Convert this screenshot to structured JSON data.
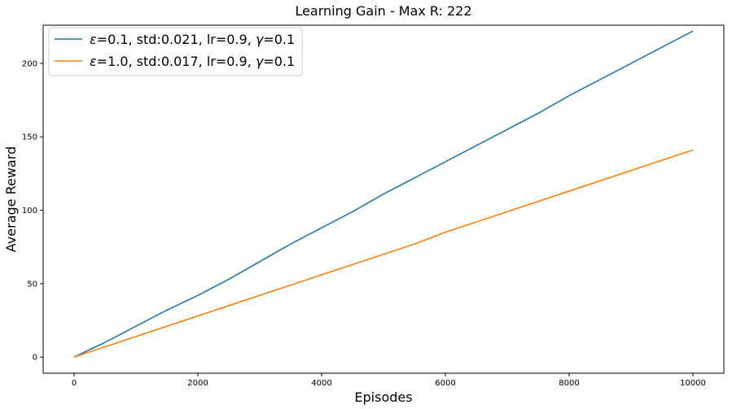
{
  "chart_data": {
    "type": "line",
    "title": "Learning Gain - Max R: 222",
    "xlabel": "Episodes",
    "ylabel": "Average Reward",
    "xlim": [
      -500,
      10500
    ],
    "ylim": [
      -11,
      226
    ],
    "xticks": [
      0,
      2000,
      4000,
      6000,
      8000,
      10000
    ],
    "yticks": [
      0,
      50,
      100,
      150,
      200
    ],
    "grid": false,
    "legend_position": "top-left",
    "series": [
      {
        "name": "ε=0.1, std:0.021, lr=0.9, γ=0.1",
        "legend_prefix": "ε",
        "legend_mid": "=0.1, std:0.021, lr=0.9, ",
        "legend_gamma": "γ",
        "legend_suffix": "=0.1",
        "color": "#1f77b4",
        "x": [
          0,
          500,
          1000,
          1500,
          2000,
          2500,
          3000,
          3500,
          4000,
          4500,
          5000,
          5500,
          6000,
          6500,
          7000,
          7500,
          8000,
          8500,
          9000,
          9500,
          10000
        ],
        "values": [
          0,
          10,
          21,
          32,
          42,
          53,
          65,
          77,
          88,
          99,
          111,
          122,
          133,
          144,
          155,
          166,
          178,
          189,
          200,
          211,
          222
        ]
      },
      {
        "name": "ε=1.0, std:0.017, lr=0.9, γ=0.1",
        "legend_prefix": "ε",
        "legend_mid": "=1.0, std:0.017, lr=0.9, ",
        "legend_gamma": "γ",
        "legend_suffix": "=0.1",
        "color": "#ff7f0e",
        "x": [
          0,
          500,
          1000,
          1500,
          2000,
          2500,
          3000,
          3500,
          4000,
          4500,
          5000,
          5500,
          6000,
          6500,
          7000,
          7500,
          8000,
          8500,
          9000,
          9500,
          10000
        ],
        "values": [
          0,
          7,
          14,
          21,
          28,
          35,
          42,
          49,
          56,
          63,
          70,
          77,
          85,
          92,
          99,
          106,
          113,
          120,
          127,
          134,
          141
        ]
      }
    ]
  }
}
